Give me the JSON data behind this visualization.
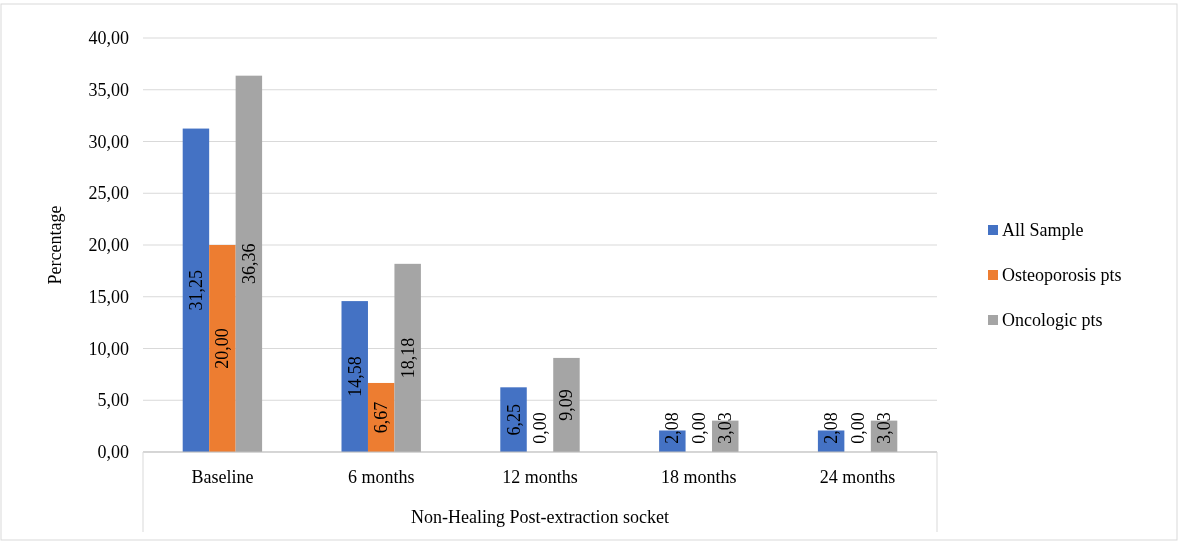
{
  "chart_data": {
    "type": "bar",
    "xlabel": "Non-Healing Post-extraction socket",
    "ylabel": "Percentage",
    "categories": [
      "Baseline",
      "6 months",
      "12 months",
      "18 months",
      "24 months"
    ],
    "series": [
      {
        "name": "All Sample",
        "color": "#4472c4",
        "values": [
          31.25,
          14.58,
          6.25,
          2.08,
          2.08
        ],
        "value_labels": [
          "31,25",
          "14,58",
          "6,25",
          "2,08",
          "2,08"
        ]
      },
      {
        "name": "Osteoporosis pts",
        "color": "#ed7d31",
        "values": [
          20.0,
          6.67,
          0.0,
          0.0,
          0.0
        ],
        "value_labels": [
          "20,00",
          "6,67",
          "0,00",
          "0,00",
          "0,00"
        ]
      },
      {
        "name": "Oncologic pts",
        "color": "#a5a5a5",
        "values": [
          36.36,
          18.18,
          9.09,
          3.03,
          3.03
        ],
        "value_labels": [
          "36,36",
          "18,18",
          "9,09",
          "3,03",
          "3,03"
        ]
      }
    ],
    "ylim": [
      0,
      40
    ],
    "yticks": [
      {
        "value": 0,
        "label": "0,00"
      },
      {
        "value": 5,
        "label": "5,00"
      },
      {
        "value": 10,
        "label": "10,00"
      },
      {
        "value": 15,
        "label": "15,00"
      },
      {
        "value": 20,
        "label": "20,00"
      },
      {
        "value": 25,
        "label": "25,00"
      },
      {
        "value": 30,
        "label": "30,00"
      },
      {
        "value": 35,
        "label": "35,00"
      },
      {
        "value": 40,
        "label": "40,00"
      }
    ],
    "grid": "y",
    "legend": "right"
  }
}
